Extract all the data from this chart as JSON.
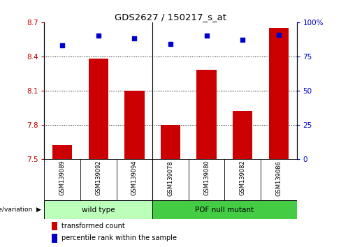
{
  "title": "GDS2627 / 150217_s_at",
  "samples": [
    "GSM139089",
    "GSM139092",
    "GSM139094",
    "GSM139078",
    "GSM139080",
    "GSM139082",
    "GSM139086"
  ],
  "bar_values": [
    7.62,
    8.38,
    8.1,
    7.8,
    8.28,
    7.92,
    8.65
  ],
  "percentile_values": [
    83,
    90,
    88,
    84,
    90,
    87,
    91
  ],
  "ylim_left": [
    7.5,
    8.7
  ],
  "ylim_right": [
    0,
    100
  ],
  "yticks_left": [
    7.5,
    7.8,
    8.1,
    8.4,
    8.7
  ],
  "yticks_right": [
    0,
    25,
    50,
    75,
    100
  ],
  "ytick_labels_left": [
    "7.5",
    "7.8",
    "8.1",
    "8.4",
    "8.7"
  ],
  "ytick_labels_right": [
    "0",
    "25",
    "50",
    "75",
    "100%"
  ],
  "bar_color": "#cc0000",
  "dot_color": "#0000cc",
  "bar_width": 0.55,
  "hline_values": [
    7.8,
    8.1,
    8.4
  ],
  "group1_label": "wild type",
  "group2_label": "POF null mutant",
  "group1_indices": [
    0,
    1,
    2
  ],
  "group2_indices": [
    3,
    4,
    5,
    6
  ],
  "group1_color": "#bbffbb",
  "group2_color": "#44cc44",
  "genotype_label": "genotype/variation",
  "legend_bar_label": "transformed count",
  "legend_dot_label": "percentile rank within the sample",
  "axis_left_color": "#cc0000",
  "axis_right_color": "#0000cc",
  "tick_bg_color": "#cccccc",
  "fig_bg": "#ffffff",
  "divider_x": 2.5,
  "n_samples": 7,
  "xlim": [
    -0.5,
    6.5
  ]
}
